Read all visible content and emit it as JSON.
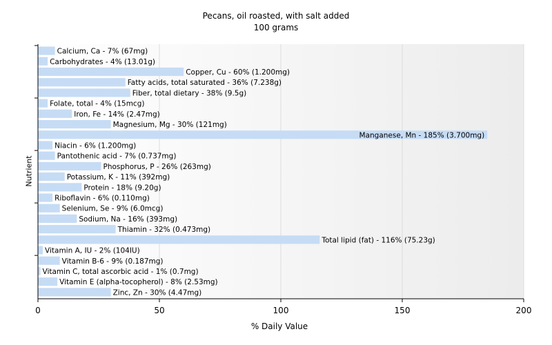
{
  "chart_data": {
    "type": "bar",
    "orientation": "horizontal",
    "title": "Pecans, oil roasted, with salt added",
    "subtitle": "100 grams",
    "xlabel": "% Daily Value",
    "ylabel": "Nutrient",
    "xlim": [
      0,
      200
    ],
    "xticks": [
      "0",
      "50",
      "100",
      "150",
      "200"
    ],
    "grid": true,
    "bar_color": "#c6dcf5",
    "bars": [
      {
        "label": "Calcium, Ca - 7% (67mg)",
        "value": 7
      },
      {
        "label": "Carbohydrates - 4% (13.01g)",
        "value": 4
      },
      {
        "label": "Copper, Cu - 60% (1.200mg)",
        "value": 60
      },
      {
        "label": "Fatty acids, total saturated - 36% (7.238g)",
        "value": 36
      },
      {
        "label": "Fiber, total dietary - 38% (9.5g)",
        "value": 38
      },
      {
        "label": "Folate, total - 4% (15mcg)",
        "value": 4
      },
      {
        "label": "Iron, Fe - 14% (2.47mg)",
        "value": 14
      },
      {
        "label": "Magnesium, Mg - 30% (121mg)",
        "value": 30
      },
      {
        "label": "Manganese, Mn - 185% (3.700mg)",
        "value": 185
      },
      {
        "label": "Niacin - 6% (1.200mg)",
        "value": 6
      },
      {
        "label": "Pantothenic acid - 7% (0.737mg)",
        "value": 7
      },
      {
        "label": "Phosphorus, P - 26% (263mg)",
        "value": 26
      },
      {
        "label": "Potassium, K - 11% (392mg)",
        "value": 11
      },
      {
        "label": "Protein - 18% (9.20g)",
        "value": 18
      },
      {
        "label": "Riboflavin - 6% (0.110mg)",
        "value": 6
      },
      {
        "label": "Selenium, Se - 9% (6.0mcg)",
        "value": 9
      },
      {
        "label": "Sodium, Na - 16% (393mg)",
        "value": 16
      },
      {
        "label": "Thiamin - 32% (0.473mg)",
        "value": 32
      },
      {
        "label": "Total lipid (fat) - 116% (75.23g)",
        "value": 116
      },
      {
        "label": "Vitamin A, IU - 2% (104IU)",
        "value": 2
      },
      {
        "label": "Vitamin B-6 - 9% (0.187mg)",
        "value": 9
      },
      {
        "label": "Vitamin C, total ascorbic acid - 1% (0.7mg)",
        "value": 1
      },
      {
        "label": "Vitamin E (alpha-tocopherol) - 8% (2.53mg)",
        "value": 8
      },
      {
        "label": "Zinc, Zn - 30% (4.47mg)",
        "value": 30
      }
    ]
  }
}
